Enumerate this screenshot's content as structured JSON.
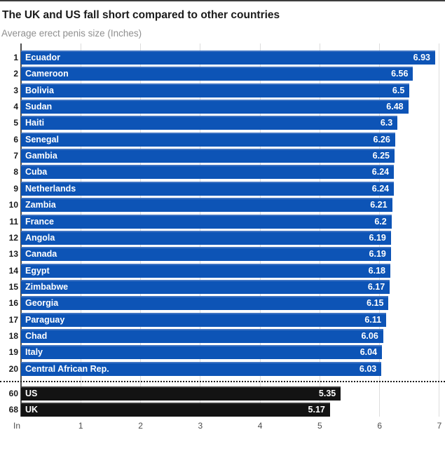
{
  "header": {
    "title": "The UK and US fall short compared to other countries",
    "subtitle": "Average erect penis size (Inches)"
  },
  "axis": {
    "unit_label": "In",
    "ticks": [
      1,
      2,
      3,
      4,
      5,
      6,
      7
    ],
    "min": 0,
    "max": 7
  },
  "colors": {
    "bar_blue": "#0d54b6",
    "bar_blue_top_edge": "#3e73c2",
    "bar_black": "#131313",
    "gridline": "#dcdcdc",
    "axis_line": "#4f4f4f",
    "bar_text": "#ffffff",
    "rank_text": "#1a1a1a",
    "tick_text": "#4d4d4d",
    "title_text": "#1a1a1a",
    "subtitle_text": "#8f8f8f"
  },
  "chart_data": {
    "type": "bar",
    "orientation": "horizontal",
    "title": "The UK and US fall short compared to other countries",
    "subtitle": "Average erect penis size (Inches)",
    "xlabel": "Inches",
    "xlim": [
      0,
      7
    ],
    "grid": true,
    "rows": [
      {
        "rank": "1",
        "country": "Ecuador",
        "value": 6.93,
        "group": "top20"
      },
      {
        "rank": "2",
        "country": "Cameroon",
        "value": 6.56,
        "group": "top20"
      },
      {
        "rank": "3",
        "country": "Bolivia",
        "value": 6.5,
        "group": "top20"
      },
      {
        "rank": "4",
        "country": "Sudan",
        "value": 6.48,
        "group": "top20"
      },
      {
        "rank": "5",
        "country": "Haiti",
        "value": 6.3,
        "group": "top20"
      },
      {
        "rank": "6",
        "country": "Senegal",
        "value": 6.26,
        "group": "top20"
      },
      {
        "rank": "7",
        "country": "Gambia",
        "value": 6.25,
        "group": "top20"
      },
      {
        "rank": "8",
        "country": "Cuba",
        "value": 6.24,
        "group": "top20"
      },
      {
        "rank": "9",
        "country": "Netherlands",
        "value": 6.24,
        "group": "top20"
      },
      {
        "rank": "10",
        "country": "Zambia",
        "value": 6.21,
        "group": "top20"
      },
      {
        "rank": "11",
        "country": "France",
        "value": 6.2,
        "group": "top20"
      },
      {
        "rank": "12",
        "country": "Angola",
        "value": 6.19,
        "group": "top20"
      },
      {
        "rank": "13",
        "country": "Canada",
        "value": 6.19,
        "group": "top20"
      },
      {
        "rank": "14",
        "country": "Egypt",
        "value": 6.18,
        "group": "top20"
      },
      {
        "rank": "15",
        "country": "Zimbabwe",
        "value": 6.17,
        "group": "top20"
      },
      {
        "rank": "16",
        "country": "Georgia",
        "value": 6.15,
        "group": "top20"
      },
      {
        "rank": "17",
        "country": "Paraguay",
        "value": 6.11,
        "group": "top20"
      },
      {
        "rank": "18",
        "country": "Chad",
        "value": 6.06,
        "group": "top20"
      },
      {
        "rank": "19",
        "country": "Italy",
        "value": 6.04,
        "group": "top20"
      },
      {
        "rank": "20",
        "country": "Central African Rep.",
        "value": 6.03,
        "group": "top20"
      },
      {
        "rank": "60",
        "country": "US",
        "value": 5.35,
        "group": "highlight"
      },
      {
        "rank": "68",
        "country": "UK",
        "value": 5.17,
        "group": "highlight"
      }
    ]
  }
}
